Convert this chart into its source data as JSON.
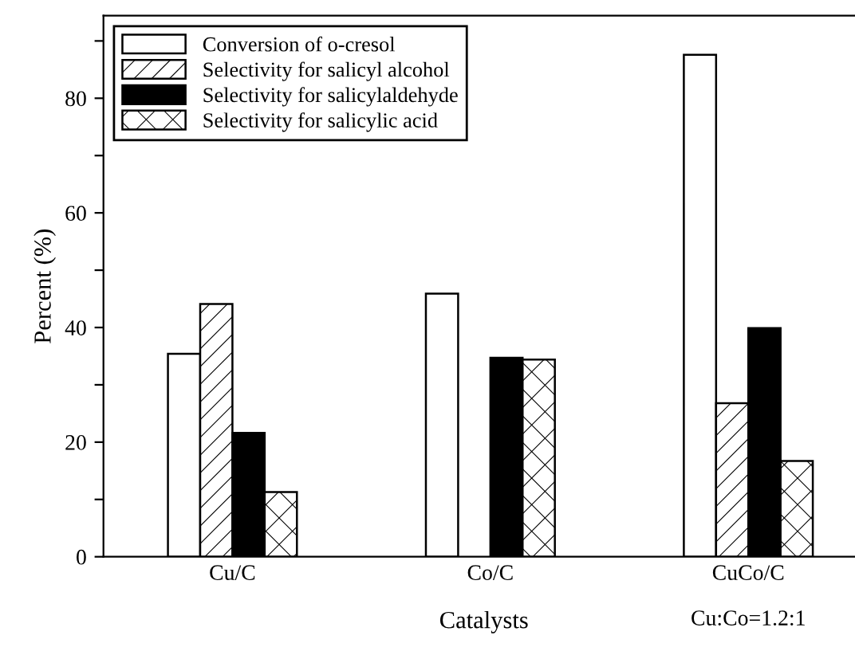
{
  "chart_data": {
    "type": "bar",
    "xlabel": "Catalysts",
    "ylabel": "Percent (%)",
    "categories": [
      "Cu/C",
      "Co/C",
      "CuCo/C"
    ],
    "series": [
      {
        "name": "Conversion of o-cresol",
        "color": "#ffffff",
        "values": [
          35.4,
          45.9,
          87.6
        ]
      },
      {
        "name": "Selectivity for salicyl alcohol",
        "color": "#000000",
        "values": [
          44.1,
          null,
          26.8
        ]
      },
      {
        "name": "Selectivity for salicylaldehyde",
        "color": "#000000",
        "values": [
          21.6,
          34.7,
          39.9
        ]
      },
      {
        "name": "Selectivity for salicylic acid",
        "color": "#000000",
        "values": [
          11.3,
          34.4,
          16.7
        ]
      }
    ],
    "ylim": [
      0,
      94.4
    ],
    "yticks": [
      0,
      {
        "value": 10,
        "label": null
      },
      20,
      {
        "value": 30,
        "label": null
      },
      40,
      {
        "value": 50,
        "label": null
      },
      60,
      {
        "value": 70,
        "label": null
      },
      80,
      {
        "value": 90,
        "label": null
      }
    ],
    "annotations": [
      "Cu:Co=1.2:1"
    ],
    "legend": "top left",
    "grid": false
  }
}
